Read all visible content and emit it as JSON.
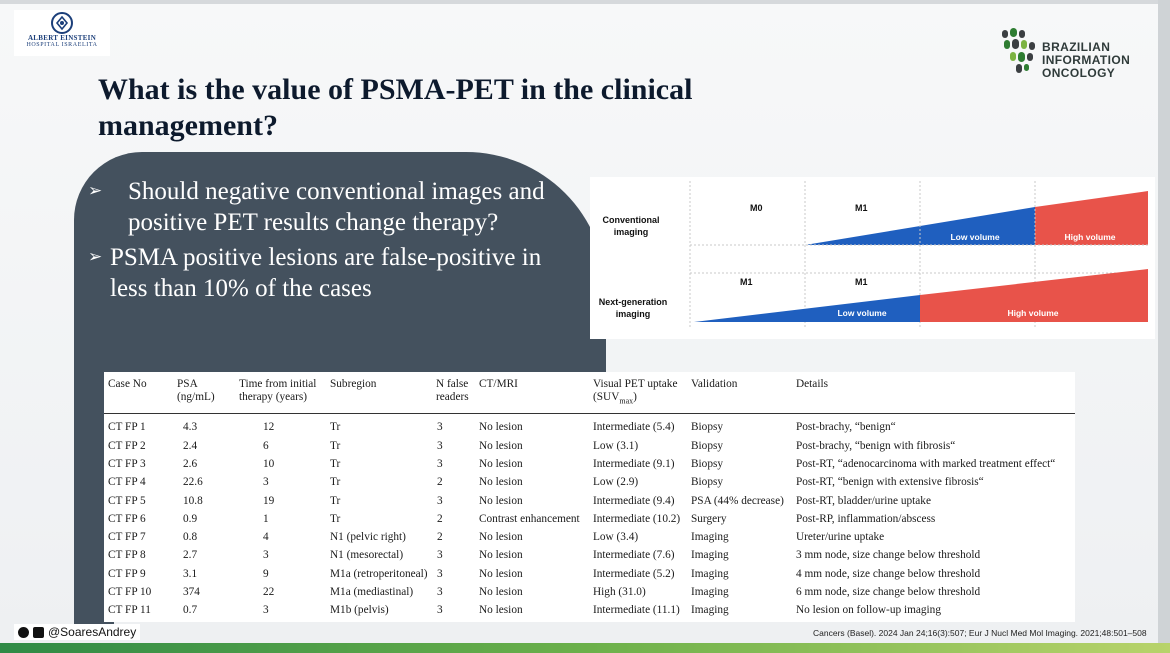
{
  "logos": {
    "left": {
      "line1": "ALBERT EINSTEIN",
      "line2": "HOSPITAL ISRAELITA"
    },
    "right": {
      "line1": "BRAZILIAN",
      "line2": "INFORMATION",
      "line3": "ONCOLOGY"
    }
  },
  "slide": {
    "title": "What is the value of PSMA-PET in the clinical management?",
    "bullets": [
      "Should negative conventional images and positive PET results change therapy?",
      "PSMA positive lesions are false-positive in less than 10% of the cases"
    ],
    "bullet_icon": "arrow-bullet-icon"
  },
  "diagram": {
    "rows": [
      {
        "label_line1": "Conventional",
        "label_line2": "imaging",
        "stages": [
          "M0",
          "M1"
        ],
        "low": "Low volume",
        "high": "High volume"
      },
      {
        "label_line1": "Next-generation",
        "label_line2": "imaging",
        "stages": [
          "M1",
          "M1"
        ],
        "low": "Low volume",
        "high": "High volume"
      }
    ],
    "colors": {
      "low": "#1f5fbf",
      "high": "#e8534a"
    }
  },
  "table": {
    "headers": [
      {
        "line1": "Case No",
        "line2": ""
      },
      {
        "line1": "PSA (ng/mL)",
        "line2": ""
      },
      {
        "line1": "Time from initial",
        "line2": "therapy (years)"
      },
      {
        "line1": "Subregion",
        "line2": ""
      },
      {
        "line1": "N false",
        "line2": "readers"
      },
      {
        "line1": "CT/MRI",
        "line2": ""
      },
      {
        "line1": "Visual PET uptake",
        "line2": "(SUV",
        "sub": "max",
        "tail": ")"
      },
      {
        "line1": "Validation",
        "line2": ""
      },
      {
        "line1": "Details",
        "line2": ""
      }
    ],
    "rows": [
      [
        "CT FP 1",
        "4.3",
        "12",
        "Tr",
        "3",
        "No lesion",
        "Intermediate (5.4)",
        "Biopsy",
        "Post-brachy, “benign“"
      ],
      [
        "CT FP 2",
        "2.4",
        "6",
        "Tr",
        "3",
        "No lesion",
        "Low (3.1)",
        "Biopsy",
        "Post-brachy, “benign with fibrosis“"
      ],
      [
        "CT FP 3",
        "2.6",
        "10",
        "Tr",
        "3",
        "No lesion",
        "Intermediate (9.1)",
        "Biopsy",
        "Post-RT, “adenocarcinoma with marked treatment effect“"
      ],
      [
        "CT FP 4",
        "22.6",
        "3",
        "Tr",
        "2",
        "No lesion",
        "Low (2.9)",
        "Biopsy",
        "Post-RT, “benign with extensive fibrosis“"
      ],
      [
        "CT FP 5",
        "10.8",
        "19",
        "Tr",
        "3",
        "No lesion",
        "Intermediate (9.4)",
        "PSA (44% decrease)",
        "Post-RT, bladder/urine uptake"
      ],
      [
        "CT FP 6",
        "0.9",
        "1",
        "Tr",
        "2",
        "Contrast enhancement",
        "Intermediate (10.2)",
        "Surgery",
        "Post-RP, inflammation/abscess"
      ],
      [
        "CT FP 7",
        "0.8",
        "4",
        "N1 (pelvic right)",
        "2",
        "No lesion",
        "Low (3.4)",
        "Imaging",
        "Ureter/urine uptake"
      ],
      [
        "CT FP 8",
        "2.7",
        "3",
        "N1 (mesorectal)",
        "3",
        "No lesion",
        "Intermediate (7.6)",
        "Imaging",
        "3 mm node, size change below threshold"
      ],
      [
        "CT FP 9",
        "3.1",
        "9",
        "M1a (retroperitoneal)",
        "3",
        "No lesion",
        "Intermediate (5.2)",
        "Imaging",
        "4 mm node, size change below threshold"
      ],
      [
        "CT FP 10",
        "374",
        "22",
        "M1a (mediastinal)",
        "3",
        "No lesion",
        "High (31.0)",
        "Imaging",
        "6 mm node, size change below threshold"
      ],
      [
        "CT FP 11",
        "0.7",
        "3",
        "M1b (pelvis)",
        "3",
        "No lesion",
        "Intermediate (11.1)",
        "Imaging",
        "No lesion on follow-up imaging"
      ]
    ]
  },
  "footer": {
    "handle": "@SoaresAndrey",
    "citation": "Cancers (Basel). 2024 Jan 24;16(3):507; Eur J Nucl Med Mol Imaging. 2021;48:501–508"
  }
}
